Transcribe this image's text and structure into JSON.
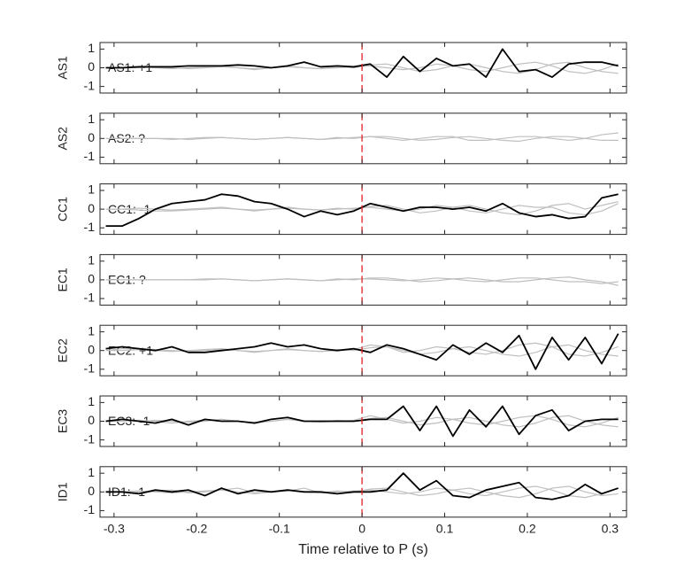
{
  "chart_data": [
    {
      "type": "line",
      "ylabel": "AS1",
      "annotation": "AS1: +1",
      "annotation_color": "#b01c1c",
      "vline": 0,
      "vline_color": "#e02020",
      "x": [
        -0.31,
        -0.29,
        -0.27,
        -0.25,
        -0.23,
        -0.21,
        -0.19,
        -0.17,
        -0.15,
        -0.13,
        -0.11,
        -0.09,
        -0.07,
        -0.05,
        -0.03,
        -0.01,
        0.01,
        0.03,
        0.05,
        0.07,
        0.09,
        0.11,
        0.13,
        0.15,
        0.17,
        0.19,
        0.21,
        0.23,
        0.25,
        0.27,
        0.29,
        0.31
      ],
      "series": [
        {
          "color": "#bfbfbf",
          "values": [
            0,
            0,
            0,
            0.05,
            0,
            -0.05,
            0,
            0.05,
            0,
            -0.05,
            0,
            0.05,
            0,
            -0.05,
            0,
            0.05,
            0.1,
            0,
            -0.1,
            0,
            0.2,
            0.1,
            -0.1,
            -0.2,
            0,
            0.2,
            0.3,
            0.1,
            -0.2,
            -0.3,
            -0.1,
            0.2
          ]
        },
        {
          "color": "#bfbfbf",
          "values": [
            0,
            0,
            0.05,
            0,
            -0.05,
            0,
            0.05,
            0.1,
            0,
            -0.1,
            0,
            0.1,
            0,
            -0.05,
            0.05,
            0,
            0.15,
            0.2,
            0,
            -0.2,
            -0.1,
            0.1,
            0.2,
            0,
            -0.2,
            -0.3,
            -0.1,
            0.2,
            0.3,
            0,
            -0.2,
            -0.3
          ]
        },
        {
          "color": "#000000",
          "values": [
            0,
            0,
            0.05,
            0.05,
            0.05,
            0.1,
            0.1,
            0.1,
            0.15,
            0.1,
            0,
            0.1,
            0.3,
            0.05,
            0.1,
            0.05,
            0.2,
            -0.5,
            0.6,
            -0.2,
            0.5,
            0.1,
            0.2,
            -0.5,
            1.0,
            -0.2,
            -0.1,
            -0.5,
            0.2,
            0.3,
            0.3,
            0.1
          ]
        }
      ],
      "xlim": [
        -0.317,
        0.32
      ],
      "xticks": [
        -0.3,
        -0.2,
        -0.1,
        0,
        0.1,
        0.2,
        0.3
      ],
      "ylim": [
        -1.35,
        1.35
      ],
      "yticks": [
        -1,
        0,
        1
      ]
    },
    {
      "type": "line",
      "ylabel": "AS2",
      "annotation": "AS2: ?",
      "annotation_color": "#8c8c8c",
      "vline": 0,
      "vline_color": "#e02020",
      "x": [
        -0.31,
        -0.29,
        -0.27,
        -0.25,
        -0.23,
        -0.21,
        -0.19,
        -0.17,
        -0.15,
        -0.13,
        -0.11,
        -0.09,
        -0.07,
        -0.05,
        -0.03,
        -0.01,
        0.01,
        0.03,
        0.05,
        0.07,
        0.09,
        0.11,
        0.13,
        0.15,
        0.17,
        0.19,
        0.21,
        0.23,
        0.25,
        0.27,
        0.29,
        0.31
      ],
      "series": [
        {
          "color": "#bfbfbf",
          "values": [
            0,
            0,
            0,
            0,
            0,
            -0.05,
            0,
            0.05,
            0,
            -0.05,
            0,
            0.05,
            0,
            -0.05,
            0,
            0.05,
            0.1,
            0,
            -0.1,
            0,
            0.1,
            0.1,
            -0.1,
            -0.1,
            0,
            0.1,
            0.1,
            0,
            -0.1,
            0,
            0.2,
            0.3
          ]
        },
        {
          "color": "#bfbfbf",
          "values": [
            0,
            0,
            0,
            0,
            -0.05,
            0,
            0.05,
            0.05,
            0,
            -0.05,
            0,
            0.05,
            0,
            -0.05,
            0.05,
            0,
            0.1,
            0.1,
            0,
            -0.1,
            -0.05,
            0.05,
            0.1,
            0,
            -0.1,
            -0.15,
            0,
            0.1,
            0.1,
            0,
            -0.1,
            -0.1
          ]
        }
      ],
      "xlim": [
        -0.317,
        0.32
      ],
      "xticks": [
        -0.3,
        -0.2,
        -0.1,
        0,
        0.1,
        0.2,
        0.3
      ],
      "ylim": [
        -1.35,
        1.35
      ],
      "yticks": [
        -1,
        0,
        1
      ]
    },
    {
      "type": "line",
      "ylabel": "CC1",
      "annotation": "CC1: -1",
      "annotation_color": "#1a1aa6",
      "vline": 0,
      "vline_color": "#e02020",
      "x": [
        -0.31,
        -0.29,
        -0.27,
        -0.25,
        -0.23,
        -0.21,
        -0.19,
        -0.17,
        -0.15,
        -0.13,
        -0.11,
        -0.09,
        -0.07,
        -0.05,
        -0.03,
        -0.01,
        0.01,
        0.03,
        0.05,
        0.07,
        0.09,
        0.11,
        0.13,
        0.15,
        0.17,
        0.19,
        0.21,
        0.23,
        0.25,
        0.27,
        0.29,
        0.31
      ],
      "series": [
        {
          "color": "#bfbfbf",
          "values": [
            0,
            0,
            -0.05,
            -0.1,
            -0.1,
            -0.05,
            0,
            0.05,
            0,
            -0.05,
            0,
            0.05,
            0,
            -0.05,
            0,
            0.05,
            0.1,
            0,
            -0.1,
            0,
            0.2,
            0.1,
            -0.1,
            -0.2,
            0,
            0.2,
            0.1,
            0.1,
            -0.2,
            -0.3,
            -0.1,
            0.3
          ]
        },
        {
          "color": "#bfbfbf",
          "values": [
            0,
            0,
            0.05,
            0,
            -0.05,
            0,
            0.05,
            0.1,
            0,
            -0.1,
            0,
            0.1,
            0,
            -0.05,
            0.05,
            0,
            0.15,
            0.2,
            0,
            -0.2,
            -0.1,
            0.1,
            0.2,
            0,
            -0.2,
            -0.3,
            -0.1,
            0.2,
            0.3,
            0,
            0.2,
            0.4
          ]
        },
        {
          "color": "#000000",
          "values": [
            -0.9,
            -0.9,
            -0.5,
            0,
            0.3,
            0.4,
            0.5,
            0.8,
            0.7,
            0.4,
            0.3,
            0.0,
            -0.4,
            -0.1,
            -0.3,
            -0.1,
            0.3,
            0.1,
            -0.1,
            0.1,
            0.1,
            0,
            0.1,
            -0.1,
            0.3,
            -0.2,
            -0.4,
            -0.3,
            -0.5,
            -0.4,
            0.6,
            0.8
          ]
        }
      ],
      "xlim": [
        -0.317,
        0.32
      ],
      "xticks": [
        -0.3,
        -0.2,
        -0.1,
        0,
        0.1,
        0.2,
        0.3
      ],
      "ylim": [
        -1.35,
        1.35
      ],
      "yticks": [
        -1,
        0,
        1
      ]
    },
    {
      "type": "line",
      "ylabel": "EC1",
      "annotation": "EC1: ?",
      "annotation_color": "#8c8c8c",
      "vline": 0,
      "vline_color": "#e02020",
      "x": [
        -0.31,
        -0.29,
        -0.27,
        -0.25,
        -0.23,
        -0.21,
        -0.19,
        -0.17,
        -0.15,
        -0.13,
        -0.11,
        -0.09,
        -0.07,
        -0.05,
        -0.03,
        -0.01,
        0.01,
        0.03,
        0.05,
        0.07,
        0.09,
        0.11,
        0.13,
        0.15,
        0.17,
        0.19,
        0.21,
        0.23,
        0.25,
        0.27,
        0.29,
        0.31
      ],
      "series": [
        {
          "color": "#bfbfbf",
          "values": [
            0,
            0,
            0,
            0,
            0,
            0,
            0,
            0.05,
            0,
            -0.05,
            0,
            0.05,
            0,
            -0.05,
            0,
            0.05,
            0.05,
            0,
            -0.05,
            0,
            0.1,
            0.05,
            -0.05,
            -0.1,
            0,
            0.1,
            0.1,
            0,
            -0.1,
            -0.1,
            -0.2,
            -0.1
          ]
        },
        {
          "color": "#bfbfbf",
          "values": [
            0,
            0,
            0,
            0,
            0,
            0,
            0.05,
            0.05,
            0,
            -0.05,
            0,
            0.05,
            0,
            -0.05,
            0.05,
            0,
            0.1,
            0.1,
            0,
            -0.1,
            -0.05,
            0.05,
            0.1,
            0,
            -0.1,
            -0.1,
            0,
            0.1,
            0.15,
            0,
            -0.1,
            -0.3
          ]
        }
      ],
      "xlim": [
        -0.317,
        0.32
      ],
      "xticks": [
        -0.3,
        -0.2,
        -0.1,
        0,
        0.1,
        0.2,
        0.3
      ],
      "ylim": [
        -1.35,
        1.35
      ],
      "yticks": [
        -1,
        0,
        1
      ]
    },
    {
      "type": "line",
      "ylabel": "EC2",
      "annotation": "EC2: +1",
      "annotation_color": "#b01c1c",
      "vline": 0,
      "vline_color": "#e02020",
      "x": [
        -0.31,
        -0.29,
        -0.27,
        -0.25,
        -0.23,
        -0.21,
        -0.19,
        -0.17,
        -0.15,
        -0.13,
        -0.11,
        -0.09,
        -0.07,
        -0.05,
        -0.03,
        -0.01,
        0.01,
        0.03,
        0.05,
        0.07,
        0.09,
        0.11,
        0.13,
        0.15,
        0.17,
        0.19,
        0.21,
        0.23,
        0.25,
        0.27,
        0.29,
        0.31
      ],
      "series": [
        {
          "color": "#bfbfbf",
          "values": [
            0,
            0.1,
            0.1,
            0.05,
            0,
            -0.05,
            0,
            0.05,
            0,
            -0.05,
            0,
            0.05,
            0,
            -0.05,
            0,
            0.05,
            0.3,
            0.2,
            -0.1,
            0,
            0.2,
            0.1,
            -0.1,
            -0.2,
            0,
            0.3,
            0.4,
            0.2,
            -0.2,
            -0.3,
            -0.1,
            0.2
          ]
        },
        {
          "color": "#bfbfbf",
          "values": [
            0,
            0,
            0.05,
            0,
            -0.05,
            0,
            0.05,
            0.1,
            0,
            -0.1,
            0,
            0.1,
            0,
            -0.05,
            0.05,
            0,
            0.15,
            0.2,
            0,
            -0.2,
            -0.1,
            0.1,
            0.2,
            0,
            -0.2,
            -0.3,
            -0.1,
            0.2,
            0.3,
            0,
            -0.2,
            -0.3
          ]
        },
        {
          "color": "#000000",
          "values": [
            0.1,
            0.2,
            0.1,
            0,
            0.2,
            -0.1,
            -0.1,
            0,
            0.1,
            0.2,
            0.4,
            0.2,
            0.3,
            0.1,
            0,
            0.1,
            -0.1,
            0.3,
            0.1,
            -0.2,
            -0.5,
            0.3,
            -0.2,
            0.4,
            -0.1,
            0.8,
            -1.0,
            0.7,
            -0.5,
            0.7,
            -0.7,
            0.9
          ]
        }
      ],
      "xlim": [
        -0.317,
        0.32
      ],
      "xticks": [
        -0.3,
        -0.2,
        -0.1,
        0,
        0.1,
        0.2,
        0.3
      ],
      "ylim": [
        -1.35,
        1.35
      ],
      "yticks": [
        -1,
        0,
        1
      ]
    },
    {
      "type": "line",
      "ylabel": "EC3",
      "annotation": "EC3: -1",
      "annotation_color": "#1a1aa6",
      "vline": 0,
      "vline_color": "#e02020",
      "x": [
        -0.31,
        -0.29,
        -0.27,
        -0.25,
        -0.23,
        -0.21,
        -0.19,
        -0.17,
        -0.15,
        -0.13,
        -0.11,
        -0.09,
        -0.07,
        -0.05,
        -0.03,
        -0.01,
        0.01,
        0.03,
        0.05,
        0.07,
        0.09,
        0.11,
        0.13,
        0.15,
        0.17,
        0.19,
        0.21,
        0.23,
        0.25,
        0.27,
        0.29,
        0.31
      ],
      "series": [
        {
          "color": "#bfbfbf",
          "values": [
            0,
            0.1,
            0,
            0.05,
            0,
            -0.05,
            0,
            0.1,
            0,
            -0.05,
            0,
            0.1,
            0,
            -0.05,
            0,
            0.05,
            0.3,
            0.1,
            -0.1,
            0,
            0.2,
            0.1,
            -0.1,
            -0.2,
            0,
            0.2,
            0.3,
            0.1,
            -0.2,
            -0.3,
            -0.1,
            0.2
          ]
        },
        {
          "color": "#bfbfbf",
          "values": [
            0,
            0,
            0.05,
            0,
            -0.1,
            0,
            0.05,
            0.1,
            0,
            -0.1,
            0,
            0.1,
            0,
            -0.05,
            0.05,
            0,
            0.15,
            0.2,
            0,
            -0.2,
            -0.1,
            0.1,
            0.2,
            0,
            -0.2,
            -0.3,
            -0.1,
            0.2,
            0.3,
            0,
            -0.2,
            -0.3
          ]
        },
        {
          "color": "#000000",
          "values": [
            0,
            0.1,
            0,
            -0.1,
            0.1,
            -0.2,
            0.1,
            0,
            0,
            -0.1,
            0.1,
            0.2,
            0,
            0,
            0,
            0,
            0.1,
            0.1,
            0.8,
            -0.5,
            0.8,
            -0.8,
            0.6,
            -0.3,
            0.8,
            -0.7,
            0.3,
            0.6,
            -0.5,
            0,
            0.1,
            0.1
          ]
        }
      ],
      "xlim": [
        -0.317,
        0.32
      ],
      "xticks": [
        -0.3,
        -0.2,
        -0.1,
        0,
        0.1,
        0.2,
        0.3
      ],
      "ylim": [
        -1.35,
        1.35
      ],
      "yticks": [
        -1,
        0,
        1
      ]
    },
    {
      "type": "line",
      "ylabel": "ID1",
      "annotation": "ID1: -1",
      "annotation_color": "#1a1aa6",
      "vline": 0,
      "vline_color": "#e02020",
      "xlabel": "Time relative to P (s)",
      "x": [
        -0.31,
        -0.29,
        -0.27,
        -0.25,
        -0.23,
        -0.21,
        -0.19,
        -0.17,
        -0.15,
        -0.13,
        -0.11,
        -0.09,
        -0.07,
        -0.05,
        -0.03,
        -0.01,
        0.01,
        0.03,
        0.05,
        0.07,
        0.09,
        0.11,
        0.13,
        0.15,
        0.17,
        0.19,
        0.21,
        0.23,
        0.25,
        0.27,
        0.29,
        0.31
      ],
      "series": [
        {
          "color": "#bfbfbf",
          "values": [
            0,
            0,
            0,
            0.05,
            0.1,
            -0.05,
            0,
            0.1,
            0.2,
            -0.05,
            0,
            0.05,
            0.2,
            -0.05,
            0,
            0.05,
            0.1,
            0,
            -0.1,
            0,
            0.2,
            0.1,
            -0.1,
            -0.2,
            0,
            0.2,
            0.3,
            0.1,
            -0.2,
            -0.3,
            -0.1,
            0.2
          ]
        },
        {
          "color": "#bfbfbf",
          "values": [
            0,
            0,
            0.05,
            0,
            -0.05,
            0,
            0.05,
            0.1,
            0,
            -0.1,
            0,
            0.1,
            0,
            -0.05,
            0.05,
            0,
            0.15,
            0.2,
            0,
            -0.2,
            -0.1,
            0.1,
            0.2,
            0,
            -0.2,
            -0.3,
            -0.1,
            0.2,
            0.3,
            0,
            -0.2,
            -0.1
          ]
        },
        {
          "color": "#000000",
          "values": [
            0,
            0,
            -0.1,
            0.1,
            0,
            0.1,
            -0.2,
            0.2,
            -0.1,
            0.1,
            0,
            0.1,
            0,
            0,
            -0.1,
            0,
            0,
            0.1,
            1.0,
            0.1,
            0.6,
            -0.2,
            -0.3,
            0.1,
            0.3,
            0.5,
            -0.3,
            -0.4,
            -0.2,
            0.4,
            -0.1,
            0.2
          ]
        }
      ],
      "xlim": [
        -0.317,
        0.32
      ],
      "xticks": [
        -0.3,
        -0.2,
        -0.1,
        0,
        0.1,
        0.2,
        0.3
      ],
      "ylim": [
        -1.35,
        1.35
      ],
      "yticks": [
        -1,
        0,
        1
      ]
    }
  ]
}
